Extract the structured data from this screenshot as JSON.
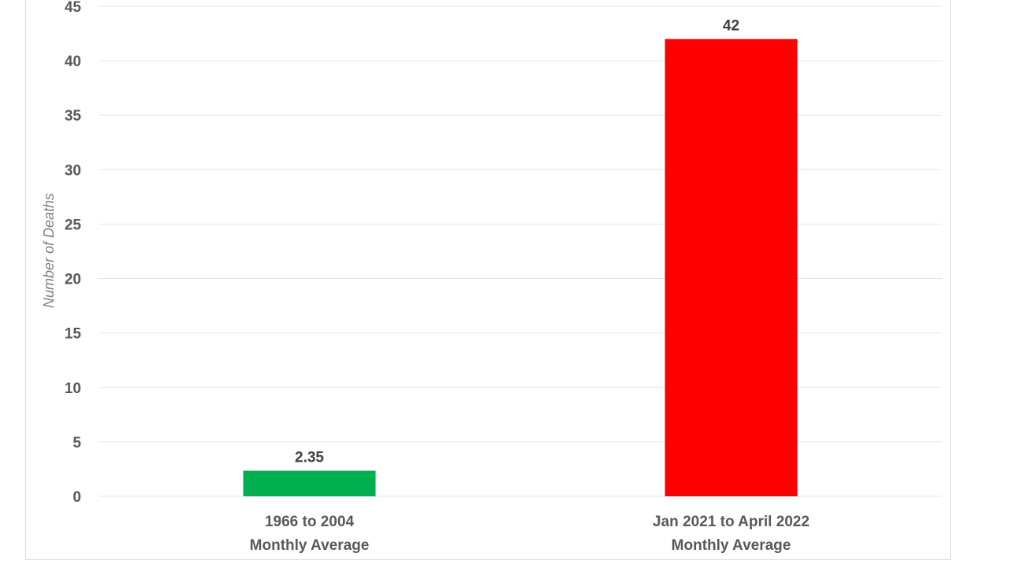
{
  "chart_data": {
    "type": "bar",
    "title": "",
    "xlabel": "",
    "ylabel": "Number of Deaths",
    "ylim": [
      0,
      45
    ],
    "ytick_step": 5,
    "grid": true,
    "categories": [
      [
        "1966 to 2004",
        "Monthly Average"
      ],
      [
        "Jan 2021 to April 2022",
        "Monthly Average"
      ]
    ],
    "values": [
      2.35,
      42
    ],
    "data_labels": [
      "2.35",
      "42"
    ],
    "colors": [
      "#00b050",
      "#ff0000"
    ]
  }
}
